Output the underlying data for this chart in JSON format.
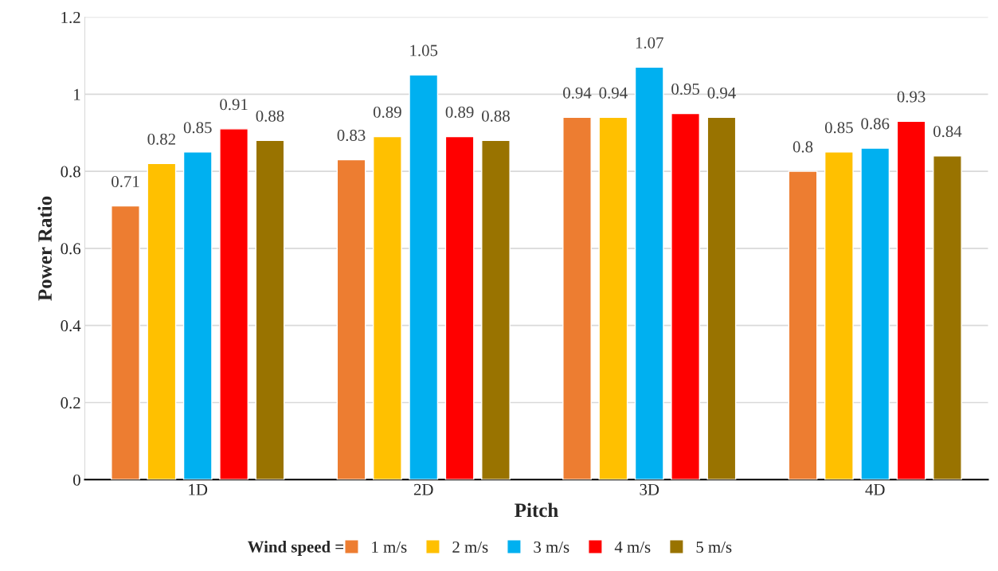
{
  "chart_data": {
    "type": "bar",
    "xlabel": "Pitch",
    "ylabel": "Power Ratio",
    "legend_title": "Wind speed =",
    "categories": [
      "1D",
      "2D",
      "3D",
      "4D"
    ],
    "series": [
      {
        "name": "1 m/s",
        "color": "#ed7d31",
        "values": [
          0.71,
          0.83,
          0.94,
          0.8
        ]
      },
      {
        "name": "2 m/s",
        "color": "#ffc000",
        "values": [
          0.82,
          0.89,
          0.94,
          0.85
        ]
      },
      {
        "name": "3 m/s",
        "color": "#00b0f0",
        "values": [
          0.85,
          1.05,
          1.07,
          0.86
        ]
      },
      {
        "name": "4 m/s",
        "color": "#ff0000",
        "values": [
          0.91,
          0.89,
          0.95,
          0.93
        ]
      },
      {
        "name": "5 m/s",
        "color": "#997300",
        "values": [
          0.88,
          0.88,
          0.94,
          0.84
        ]
      }
    ],
    "ylim": [
      0,
      1.2
    ],
    "yticks": [
      0,
      0.2,
      0.4,
      0.6,
      0.8,
      1,
      1.2
    ],
    "grid": "y",
    "legend": "bottom",
    "data_labels": true
  }
}
